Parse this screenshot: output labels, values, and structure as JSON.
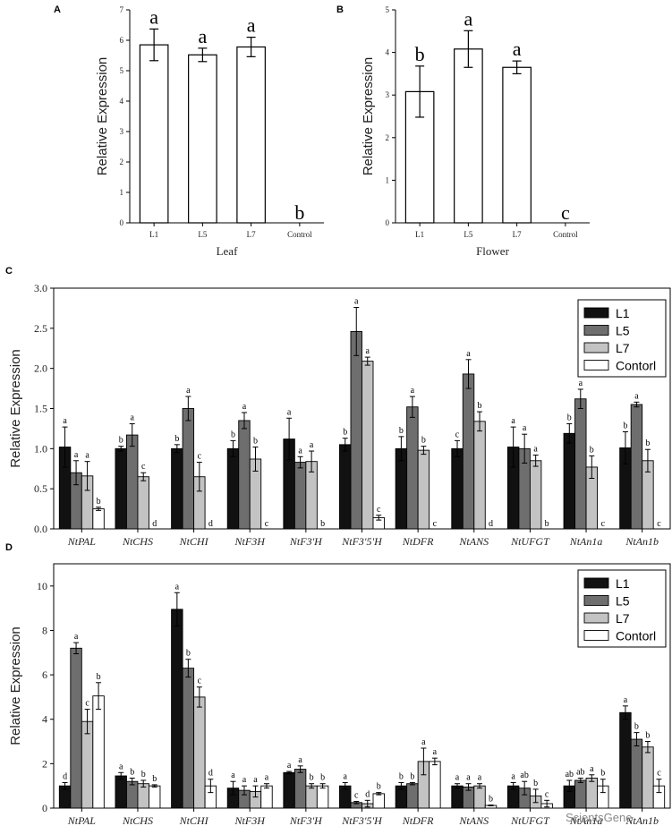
{
  "panels": {
    "A": "A",
    "B": "B",
    "C": "C",
    "D": "D"
  },
  "legend_colors": {
    "L1": "#111111",
    "L5": "#6e6e6e",
    "L7": "#c3c3c3",
    "Contorl": "#ffffff"
  },
  "chart_data": [
    {
      "type": "bar",
      "panel": "A",
      "categories": [
        "L1",
        "L5",
        "L7",
        "Control"
      ],
      "values": [
        5.85,
        5.52,
        5.78,
        0
      ],
      "errors": [
        0.52,
        0.22,
        0.32,
        0
      ],
      "significance": [
        "a",
        "a",
        "a",
        "b"
      ],
      "xlabel": "Leaf",
      "ylabel": "Relative Expression",
      "ylim": [
        0,
        7
      ],
      "yticks": [
        "0",
        "1",
        "2",
        "3",
        "4",
        "5",
        "6",
        "7"
      ]
    },
    {
      "type": "bar",
      "panel": "B",
      "categories": [
        "L1",
        "L5",
        "L7",
        "Control"
      ],
      "values": [
        3.08,
        4.08,
        3.65,
        0
      ],
      "errors": [
        0.6,
        0.43,
        0.15,
        0
      ],
      "significance": [
        "b",
        "a",
        "a",
        "c"
      ],
      "xlabel": "Flower",
      "ylabel": "Relative Expression",
      "ylim": [
        0,
        5
      ],
      "yticks": [
        "0",
        "1",
        "2",
        "3",
        "4",
        "5"
      ]
    },
    {
      "type": "bar",
      "panel": "C",
      "categories": [
        "NtPAL",
        "NtCHS",
        "NtCHI",
        "NtF3H",
        "NtF3'H",
        "NtF3'5'H",
        "NtDFR",
        "NtANS",
        "NtUFGT",
        "NtAn1a",
        "NtAn1b"
      ],
      "ylabel": "Relative Expression",
      "ylim": [
        0,
        3.0
      ],
      "yticks": [
        "0.0",
        "0.5",
        "1.0",
        "1.5",
        "2.0",
        "2.5",
        "3.0"
      ],
      "series": [
        {
          "name": "L1",
          "values": [
            1.02,
            1.0,
            1.0,
            1.0,
            1.12,
            1.05,
            1.0,
            1.0,
            1.02,
            1.19,
            1.01
          ],
          "errors": [
            0.25,
            0.03,
            0.05,
            0.1,
            0.26,
            0.08,
            0.15,
            0.1,
            0.25,
            0.12,
            0.2
          ],
          "sig": [
            "a",
            "b",
            "b",
            "b",
            "a",
            "b",
            "b",
            "c",
            "a",
            "b",
            "b"
          ]
        },
        {
          "name": "L5",
          "values": [
            0.7,
            1.17,
            1.5,
            1.35,
            0.83,
            2.46,
            1.52,
            1.93,
            1.0,
            1.62,
            1.55
          ],
          "errors": [
            0.15,
            0.14,
            0.15,
            0.1,
            0.07,
            0.3,
            0.13,
            0.18,
            0.18,
            0.12,
            0.03
          ],
          "sig": [
            "a",
            "a",
            "a",
            "a",
            "a",
            "a",
            "a",
            "a",
            "a",
            "a",
            "a"
          ]
        },
        {
          "name": "L7",
          "values": [
            0.66,
            0.65,
            0.65,
            0.87,
            0.84,
            2.09,
            0.98,
            1.34,
            0.85,
            0.77,
            0.85
          ],
          "errors": [
            0.18,
            0.05,
            0.18,
            0.15,
            0.13,
            0.05,
            0.05,
            0.12,
            0.07,
            0.14,
            0.14
          ],
          "sig": [
            "a",
            "c",
            "c",
            "b",
            "a",
            "a",
            "b",
            "b",
            "a",
            "b",
            "b"
          ]
        },
        {
          "name": "Contorl",
          "values": [
            0.25,
            0,
            0,
            0,
            0,
            0.14,
            0,
            0,
            0,
            0,
            0
          ],
          "errors": [
            0.02,
            0,
            0,
            0,
            0,
            0.03,
            0,
            0,
            0,
            0,
            0
          ],
          "sig": [
            "b",
            "d",
            "d",
            "c",
            "b",
            "c",
            "c",
            "d",
            "b",
            "c",
            "c"
          ]
        }
      ]
    },
    {
      "type": "bar",
      "panel": "D",
      "categories": [
        "NtPAL",
        "NtCHS",
        "NtCHI",
        "NtF3H",
        "NtF3'H",
        "NtF3'5'H",
        "NtDFR",
        "NtANS",
        "NtUFGT",
        "NtAn1a",
        "NtAn1b"
      ],
      "ylabel": "Relative Expression",
      "ylim": [
        0,
        11
      ],
      "yticks": [
        "0",
        "2",
        "4",
        "6",
        "8",
        "10"
      ],
      "series": [
        {
          "name": "L1",
          "values": [
            1.0,
            1.45,
            8.95,
            0.9,
            1.6,
            1.0,
            1.0,
            1.0,
            1.0,
            1.0,
            4.3
          ],
          "errors": [
            0.15,
            0.15,
            0.75,
            0.3,
            0.05,
            0.15,
            0.15,
            0.1,
            0.15,
            0.25,
            0.3
          ]
        },
        {
          "name": "L5",
          "values": [
            7.2,
            1.2,
            6.3,
            0.8,
            1.75,
            0.25,
            1.1,
            0.95,
            0.9,
            1.25,
            3.1
          ],
          "errors": [
            0.25,
            0.15,
            0.4,
            0.2,
            0.15,
            0.05,
            0.05,
            0.15,
            0.3,
            0.1,
            0.3
          ]
        },
        {
          "name": "L7",
          "values": [
            3.9,
            1.1,
            5.0,
            0.75,
            1.0,
            0.2,
            2.1,
            1.0,
            0.55,
            1.35,
            2.75
          ]
        },
        {
          "name": "Contorl",
          "values": [
            5.05,
            1.0,
            1.0,
            1.0,
            1.0,
            0.65,
            2.1,
            0.12,
            0.2,
            1.0,
            1.0
          ]
        }
      ],
      "errors_L7": [
        0.55,
        0.15,
        0.45,
        0.25,
        0.1,
        0.15,
        0.6,
        0.1,
        0.3,
        0.15,
        0.25
      ],
      "errors_Contorl": [
        0.6,
        0.05,
        0.3,
        0.1,
        0.1,
        0.05,
        0.15,
        0.02,
        0.15,
        0.3,
        0.3
      ],
      "sig": [
        [
          "d",
          "a",
          "c",
          "b"
        ],
        [
          "a",
          "b",
          "b",
          "b"
        ],
        [
          "a",
          "b",
          "c",
          "d"
        ],
        [
          "a",
          "a",
          "a",
          "a"
        ],
        [
          "a",
          "a",
          "b",
          "b"
        ],
        [
          "a",
          "c",
          "d",
          "b"
        ],
        [
          "b",
          "b",
          "a",
          "a"
        ],
        [
          "a",
          "a",
          "a",
          "b"
        ],
        [
          "a",
          "ab",
          "b",
          "c"
        ],
        [
          "ab",
          "ab",
          "a",
          "b"
        ],
        [
          "a",
          "b",
          "b",
          "c"
        ]
      ]
    }
  ],
  "watermark": "ScientsGene"
}
